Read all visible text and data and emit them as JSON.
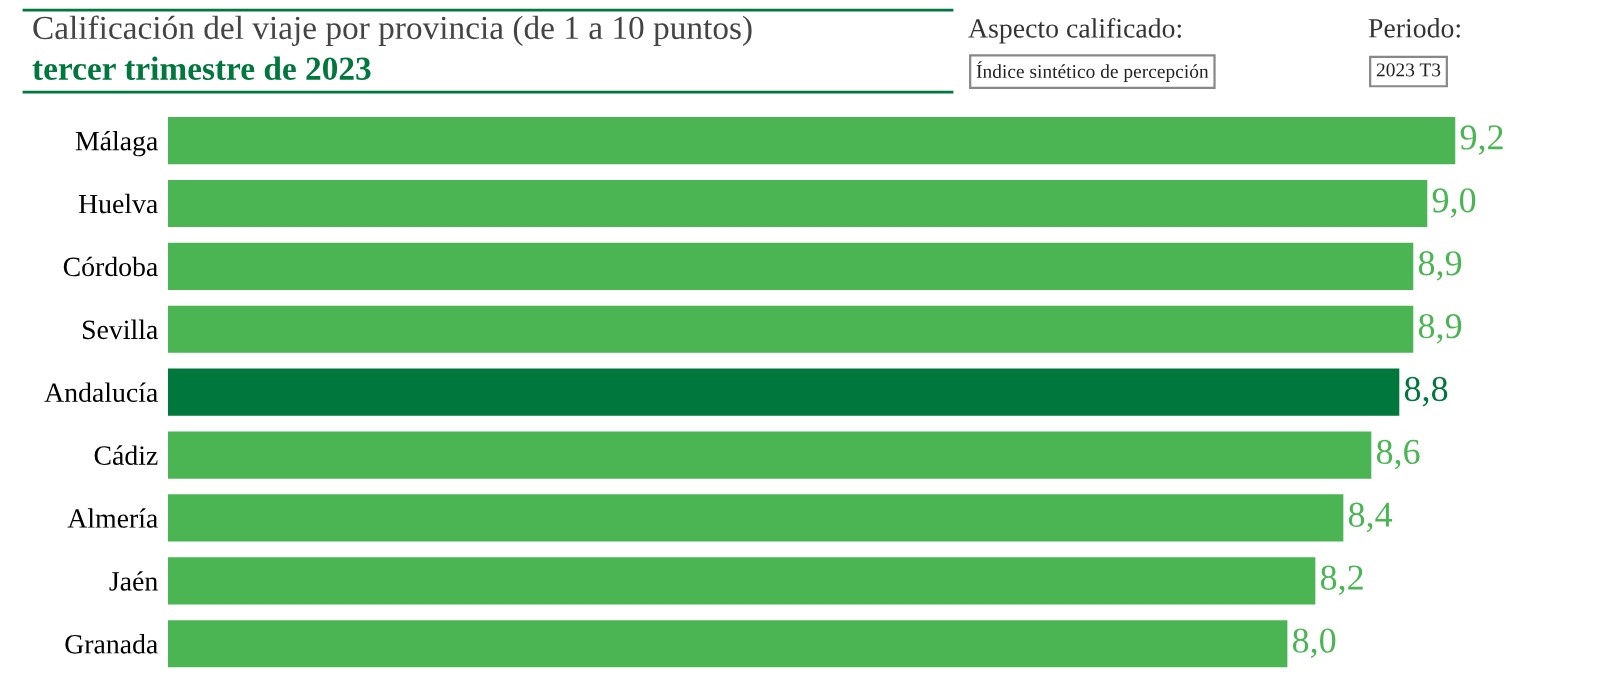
{
  "chart_data": {
    "type": "bar",
    "orientation": "horizontal",
    "title": "Calificación del viaje por provincia (de 1 a 10 puntos)",
    "subtitle": "tercer trimestre de 2023",
    "annotations": [
      "Aspecto calificado:",
      "Índice sintético de percepción",
      "Periodo:",
      "2023 T3"
    ],
    "categories": [
      "Málaga",
      "Huelva",
      "Córdoba",
      "Sevilla",
      "Andalucía",
      "Cádiz",
      "Almería",
      "Jaén",
      "Granada"
    ],
    "values": [
      9.2,
      9.0,
      8.9,
      8.9,
      8.8,
      8.6,
      8.4,
      8.2,
      8.0
    ],
    "value_labels": [
      "9,2",
      "9,0",
      "8,9",
      "8,9",
      "8,8",
      "8,6",
      "8,4",
      "8,2",
      "8,0"
    ],
    "colors": [
      "#4bb554",
      "#4bb554",
      "#4bb554",
      "#4bb554",
      "#00773c",
      "#4bb554",
      "#4bb554",
      "#4bb554",
      "#4bb554"
    ],
    "tick_labels": "y",
    "grid": false,
    "legend": false
  }
}
